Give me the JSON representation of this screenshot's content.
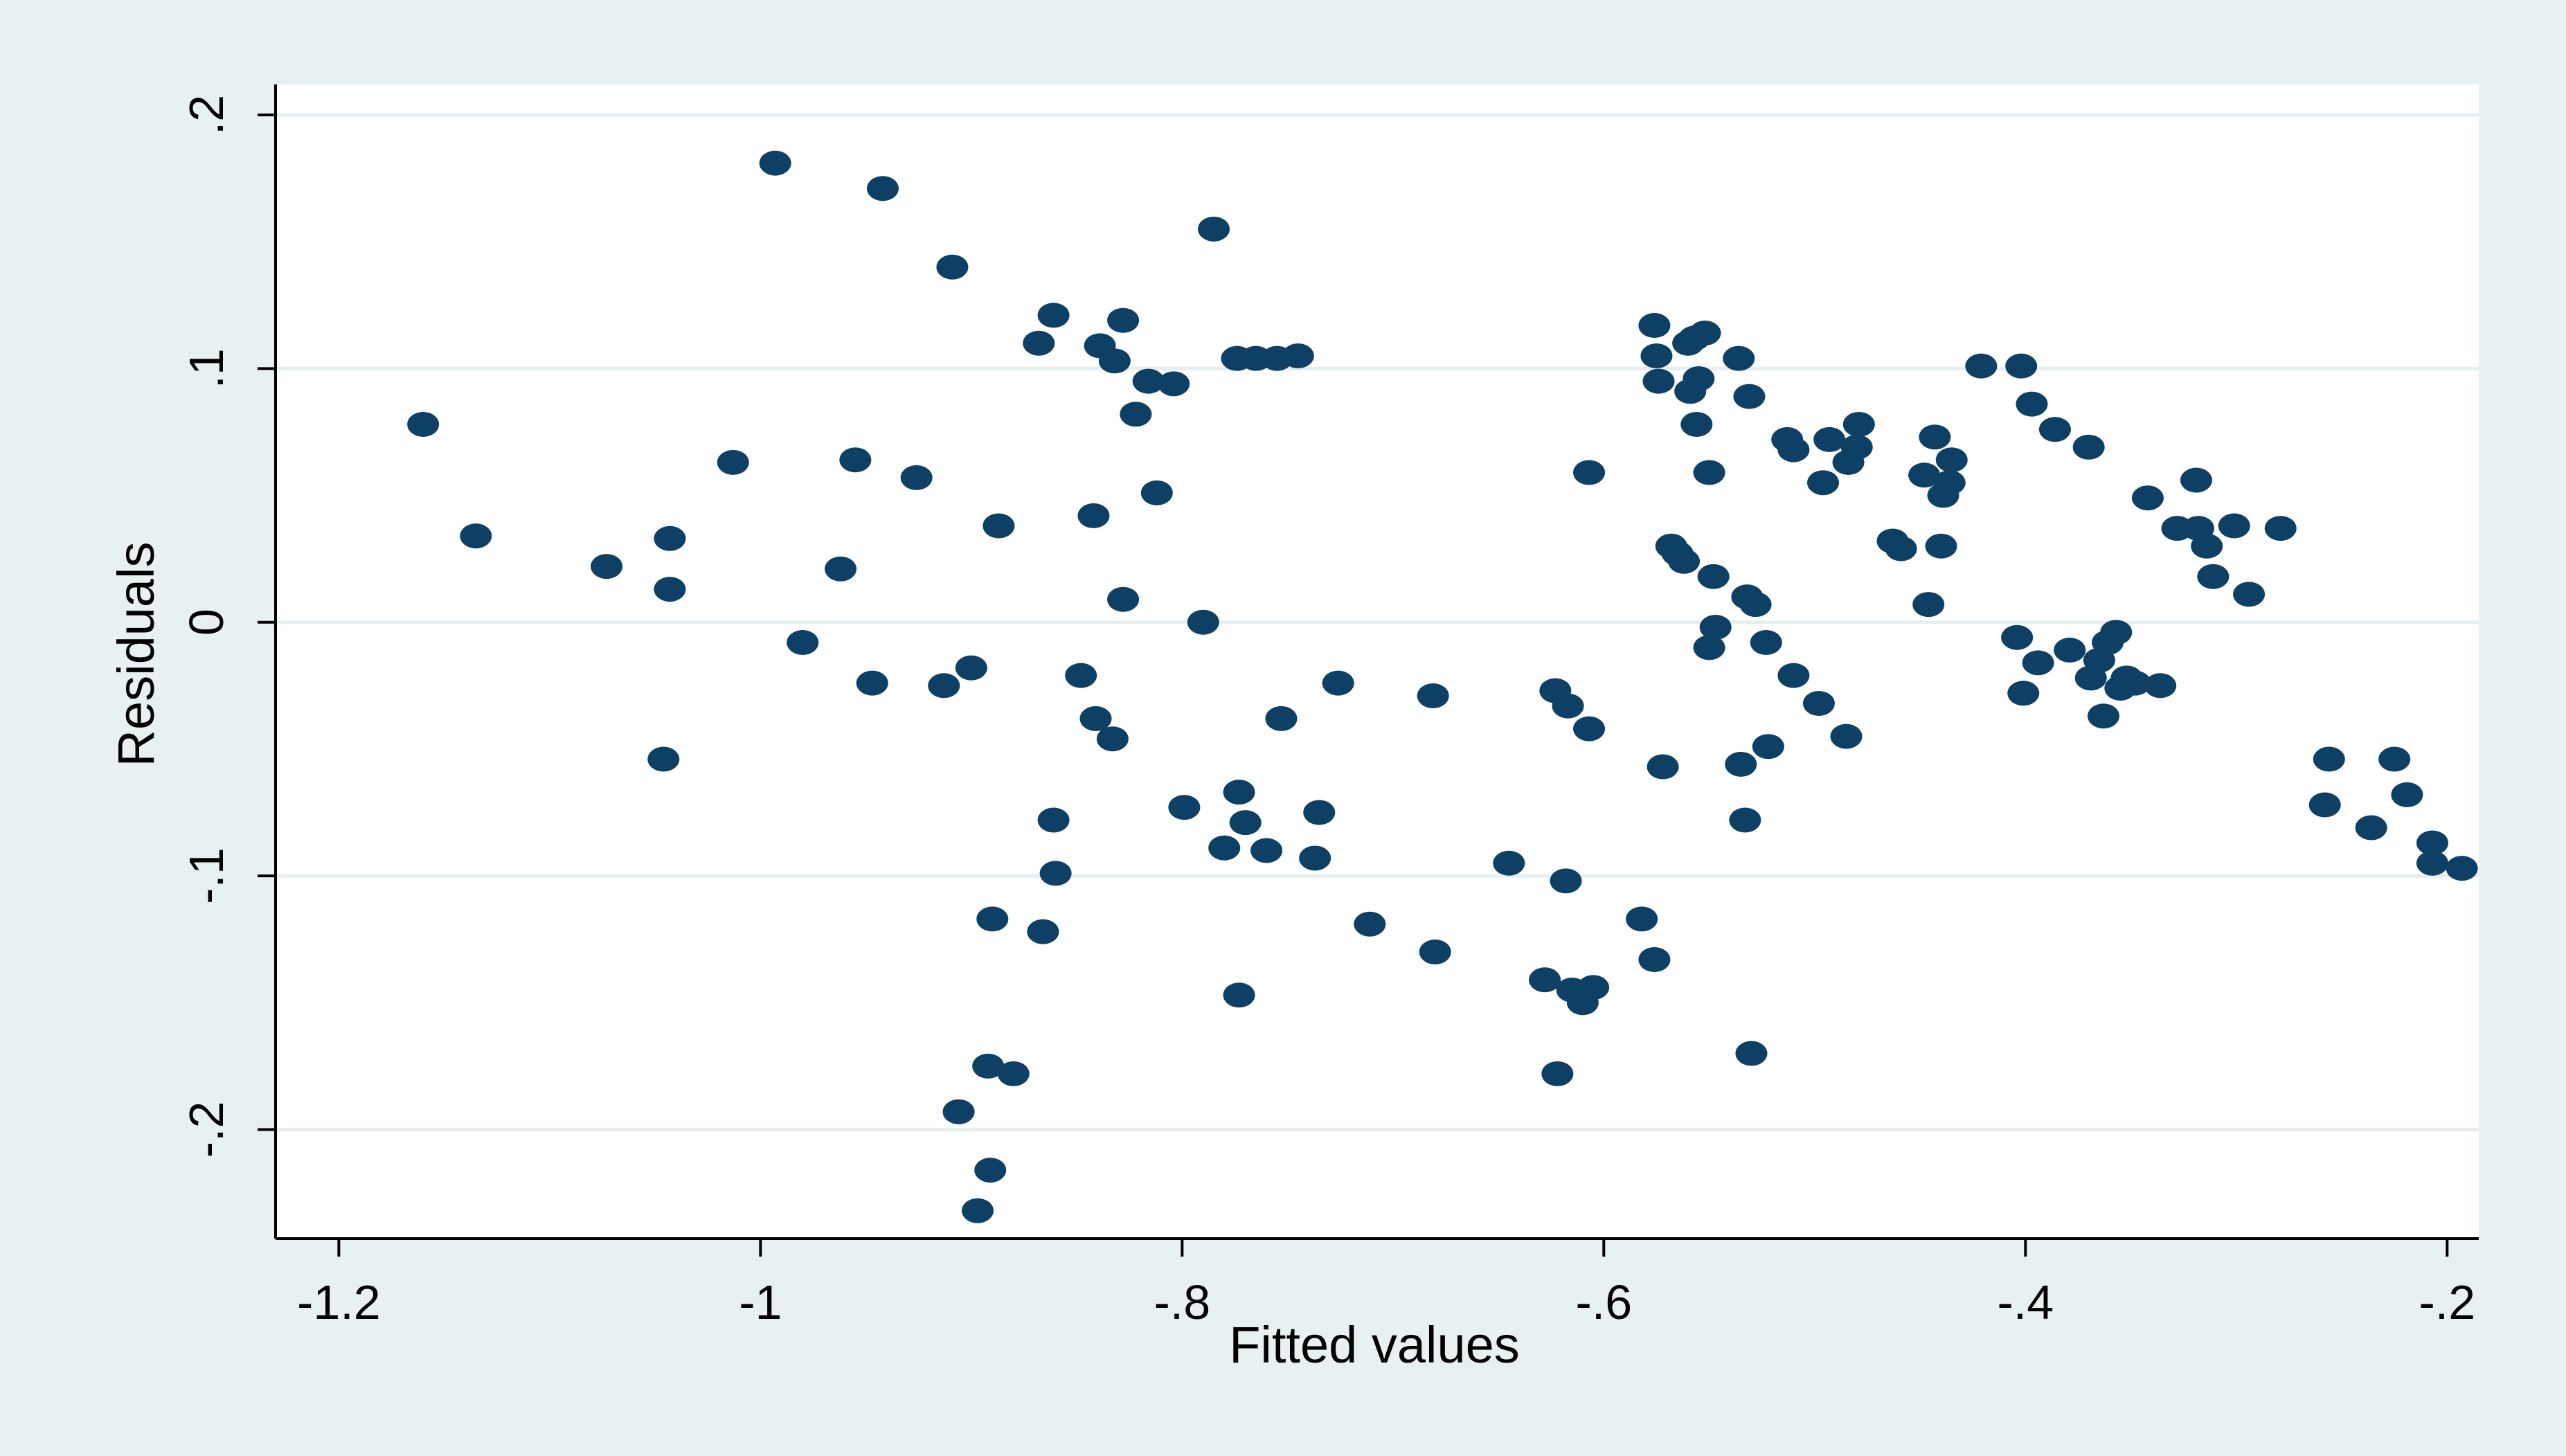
{
  "chart_data": {
    "type": "scatter",
    "title": "",
    "xlabel": "Fitted values",
    "ylabel": "Residuals",
    "xlim": [
      -1.23,
      -0.185
    ],
    "ylim": [
      -0.243,
      0.212
    ],
    "x_ticks": [
      -1.2,
      -1.0,
      -0.8,
      -0.6,
      -0.4,
      -0.2
    ],
    "x_tick_labels": [
      "-1.2",
      "-1",
      "-.8",
      "-.6",
      "-.4",
      "-.2"
    ],
    "y_ticks": [
      -0.2,
      -0.1,
      0,
      0.1,
      0.2
    ],
    "y_tick_labels": [
      "-.2",
      "-.1",
      "0",
      ".1",
      ".2"
    ],
    "grid": "horizontal",
    "legend": "none",
    "colors": {
      "outer_background": "#e8f1f2",
      "plot_background": "#ffffff",
      "gridline": "#e6eef0",
      "marker": "#0d4064",
      "axis": "#000000"
    },
    "series": [
      {
        "points": [
          {
            "x": -1.16,
            "y": 0.078
          },
          {
            "x": -1.135,
            "y": 0.034
          },
          {
            "x": -1.073,
            "y": 0.022
          },
          {
            "x": -1.043,
            "y": 0.033
          },
          {
            "x": -1.043,
            "y": 0.013
          },
          {
            "x": -1.046,
            "y": -0.054
          },
          {
            "x": -1.013,
            "y": 0.063
          },
          {
            "x": -0.993,
            "y": 0.181
          },
          {
            "x": -0.98,
            "y": -0.008
          },
          {
            "x": -0.962,
            "y": 0.021
          },
          {
            "x": -0.955,
            "y": 0.064
          },
          {
            "x": -0.947,
            "y": -0.024
          },
          {
            "x": -0.942,
            "y": 0.171
          },
          {
            "x": -0.926,
            "y": 0.057
          },
          {
            "x": -0.913,
            "y": -0.025
          },
          {
            "x": -0.909,
            "y": 0.14
          },
          {
            "x": -0.906,
            "y": -0.193
          },
          {
            "x": -0.9,
            "y": -0.018
          },
          {
            "x": -0.897,
            "y": -0.232
          },
          {
            "x": -0.892,
            "y": -0.175
          },
          {
            "x": -0.891,
            "y": -0.216
          },
          {
            "x": -0.89,
            "y": -0.117
          },
          {
            "x": -0.887,
            "y": 0.038
          },
          {
            "x": -0.88,
            "y": -0.178
          },
          {
            "x": -0.868,
            "y": 0.11
          },
          {
            "x": -0.866,
            "y": -0.122
          },
          {
            "x": -0.861,
            "y": 0.121
          },
          {
            "x": -0.861,
            "y": -0.078
          },
          {
            "x": -0.86,
            "y": -0.099
          },
          {
            "x": -0.848,
            "y": -0.021
          },
          {
            "x": -0.842,
            "y": 0.042
          },
          {
            "x": -0.841,
            "y": -0.038
          },
          {
            "x": -0.839,
            "y": 0.109
          },
          {
            "x": -0.833,
            "y": -0.046
          },
          {
            "x": -0.832,
            "y": 0.103
          },
          {
            "x": -0.828,
            "y": 0.119
          },
          {
            "x": -0.828,
            "y": 0.009
          },
          {
            "x": -0.822,
            "y": 0.082
          },
          {
            "x": -0.816,
            "y": 0.095
          },
          {
            "x": -0.812,
            "y": 0.051
          },
          {
            "x": -0.804,
            "y": 0.094
          },
          {
            "x": -0.799,
            "y": -0.073
          },
          {
            "x": -0.79,
            "y": 0.0
          },
          {
            "x": -0.785,
            "y": 0.155
          },
          {
            "x": -0.78,
            "y": -0.089
          },
          {
            "x": -0.774,
            "y": 0.104
          },
          {
            "x": -0.773,
            "y": -0.067
          },
          {
            "x": -0.773,
            "y": -0.147
          },
          {
            "x": -0.77,
            "y": -0.079
          },
          {
            "x": -0.765,
            "y": 0.104
          },
          {
            "x": -0.76,
            "y": -0.09
          },
          {
            "x": -0.755,
            "y": 0.104
          },
          {
            "x": -0.753,
            "y": -0.038
          },
          {
            "x": -0.745,
            "y": 0.105
          },
          {
            "x": -0.737,
            "y": -0.093
          },
          {
            "x": -0.735,
            "y": -0.075
          },
          {
            "x": -0.726,
            "y": -0.024
          },
          {
            "x": -0.711,
            "y": -0.119
          },
          {
            "x": -0.68,
            "y": -0.13
          },
          {
            "x": -0.681,
            "y": -0.029
          },
          {
            "x": -0.645,
            "y": -0.095
          },
          {
            "x": -0.628,
            "y": -0.141
          },
          {
            "x": -0.623,
            "y": -0.027
          },
          {
            "x": -0.622,
            "y": -0.178
          },
          {
            "x": -0.618,
            "y": -0.102
          },
          {
            "x": -0.617,
            "y": -0.033
          },
          {
            "x": -0.615,
            "y": -0.145
          },
          {
            "x": -0.61,
            "y": -0.15
          },
          {
            "x": -0.607,
            "y": 0.059
          },
          {
            "x": -0.607,
            "y": -0.042
          },
          {
            "x": -0.605,
            "y": -0.144
          },
          {
            "x": -0.582,
            "y": -0.117
          },
          {
            "x": -0.576,
            "y": 0.117
          },
          {
            "x": -0.576,
            "y": -0.133
          },
          {
            "x": -0.575,
            "y": 0.105
          },
          {
            "x": -0.574,
            "y": 0.095
          },
          {
            "x": -0.572,
            "y": -0.057
          },
          {
            "x": -0.568,
            "y": 0.03
          },
          {
            "x": -0.565,
            "y": 0.027
          },
          {
            "x": -0.562,
            "y": 0.024
          },
          {
            "x": -0.56,
            "y": 0.11
          },
          {
            "x": -0.559,
            "y": 0.091
          },
          {
            "x": -0.557,
            "y": 0.112
          },
          {
            "x": -0.556,
            "y": 0.078
          },
          {
            "x": -0.555,
            "y": 0.096
          },
          {
            "x": -0.552,
            "y": 0.114
          },
          {
            "x": -0.55,
            "y": 0.059
          },
          {
            "x": -0.55,
            "y": -0.01
          },
          {
            "x": -0.548,
            "y": 0.018
          },
          {
            "x": -0.547,
            "y": -0.002
          },
          {
            "x": -0.536,
            "y": 0.104
          },
          {
            "x": -0.535,
            "y": -0.056
          },
          {
            "x": -0.533,
            "y": -0.078
          },
          {
            "x": -0.532,
            "y": 0.01
          },
          {
            "x": -0.531,
            "y": 0.089
          },
          {
            "x": -0.53,
            "y": -0.17
          },
          {
            "x": -0.528,
            "y": 0.007
          },
          {
            "x": -0.523,
            "y": -0.008
          },
          {
            "x": -0.522,
            "y": -0.049
          },
          {
            "x": -0.513,
            "y": 0.072
          },
          {
            "x": -0.51,
            "y": -0.021
          },
          {
            "x": -0.51,
            "y": 0.068
          },
          {
            "x": -0.498,
            "y": -0.032
          },
          {
            "x": -0.496,
            "y": 0.055
          },
          {
            "x": -0.493,
            "y": 0.072
          },
          {
            "x": -0.485,
            "y": -0.045
          },
          {
            "x": -0.484,
            "y": 0.063
          },
          {
            "x": -0.48,
            "y": 0.069
          },
          {
            "x": -0.479,
            "y": 0.078
          },
          {
            "x": -0.463,
            "y": 0.032
          },
          {
            "x": -0.459,
            "y": 0.029
          },
          {
            "x": -0.448,
            "y": 0.058
          },
          {
            "x": -0.446,
            "y": 0.007
          },
          {
            "x": -0.443,
            "y": 0.073
          },
          {
            "x": -0.44,
            "y": 0.03
          },
          {
            "x": -0.439,
            "y": 0.05
          },
          {
            "x": -0.436,
            "y": 0.055
          },
          {
            "x": -0.435,
            "y": 0.064
          },
          {
            "x": -0.421,
            "y": 0.101
          },
          {
            "x": -0.404,
            "y": -0.006
          },
          {
            "x": -0.402,
            "y": 0.101
          },
          {
            "x": -0.401,
            "y": -0.028
          },
          {
            "x": -0.397,
            "y": 0.086
          },
          {
            "x": -0.394,
            "y": -0.016
          },
          {
            "x": -0.386,
            "y": 0.076
          },
          {
            "x": -0.379,
            "y": -0.011
          },
          {
            "x": -0.37,
            "y": 0.069
          },
          {
            "x": -0.369,
            "y": -0.022
          },
          {
            "x": -0.365,
            "y": -0.015
          },
          {
            "x": -0.363,
            "y": -0.037
          },
          {
            "x": -0.361,
            "y": -0.008
          },
          {
            "x": -0.357,
            "y": -0.004
          },
          {
            "x": -0.355,
            "y": -0.026
          },
          {
            "x": -0.352,
            "y": -0.022
          },
          {
            "x": -0.348,
            "y": -0.024
          },
          {
            "x": -0.342,
            "y": 0.049
          },
          {
            "x": -0.336,
            "y": -0.025
          },
          {
            "x": -0.328,
            "y": 0.037
          },
          {
            "x": -0.319,
            "y": 0.056
          },
          {
            "x": -0.318,
            "y": 0.037
          },
          {
            "x": -0.314,
            "y": 0.03
          },
          {
            "x": -0.311,
            "y": 0.018
          },
          {
            "x": -0.301,
            "y": 0.038
          },
          {
            "x": -0.294,
            "y": 0.011
          },
          {
            "x": -0.279,
            "y": 0.037
          },
          {
            "x": -0.258,
            "y": -0.072
          },
          {
            "x": -0.256,
            "y": -0.054
          },
          {
            "x": -0.236,
            "y": -0.081
          },
          {
            "x": -0.225,
            "y": -0.054
          },
          {
            "x": -0.219,
            "y": -0.068
          },
          {
            "x": -0.207,
            "y": -0.087
          },
          {
            "x": -0.207,
            "y": -0.095
          },
          {
            "x": -0.193,
            "y": -0.097
          }
        ]
      }
    ]
  }
}
